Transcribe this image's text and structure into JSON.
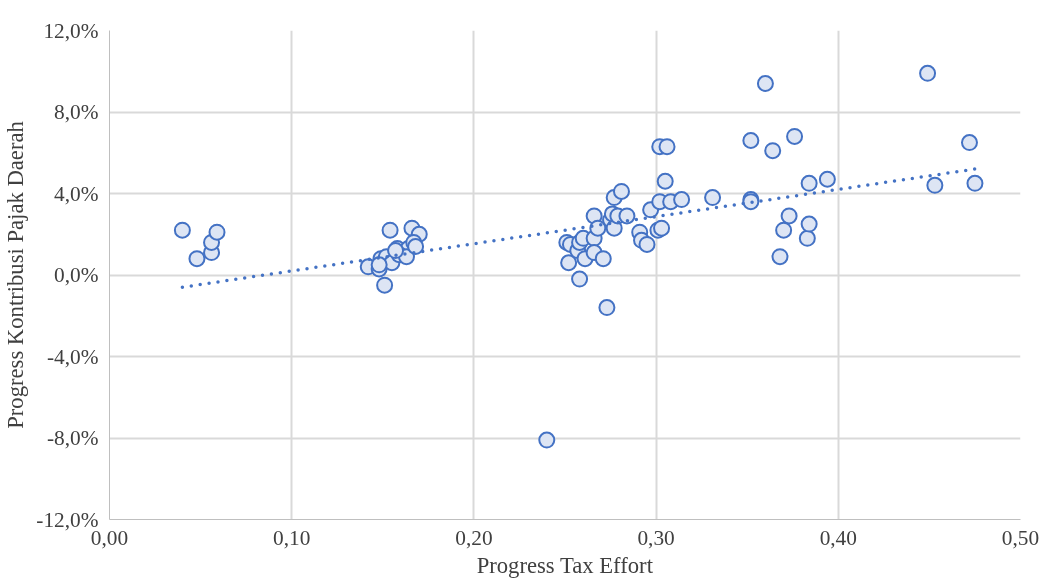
{
  "chart_data": {
    "type": "scatter",
    "xlabel": "Progress Tax Effort",
    "ylabel": "Progress Kontribusi Pajak Daerah",
    "xlim": [
      0,
      0.5
    ],
    "ylim": [
      -12,
      12
    ],
    "xticks": [
      {
        "value": 0,
        "label": "0,00"
      },
      {
        "value": 0.1,
        "label": "0,10"
      },
      {
        "value": 0.2,
        "label": "0,20"
      },
      {
        "value": 0.3,
        "label": "0,30"
      },
      {
        "value": 0.4,
        "label": "0,40"
      },
      {
        "value": 0.5,
        "label": "0,50"
      }
    ],
    "yticks": [
      {
        "value": -12,
        "label": "-12,0%"
      },
      {
        "value": -8,
        "label": "-8,0%"
      },
      {
        "value": -4,
        "label": "-4,0%"
      },
      {
        "value": 0,
        "label": "0,0%"
      },
      {
        "value": 4,
        "label": "4,0%"
      },
      {
        "value": 8,
        "label": "8,0%"
      },
      {
        "value": 12,
        "label": "12,0%"
      }
    ],
    "grid": true,
    "series": [
      {
        "marker": "circle",
        "color": "#4472c4",
        "x": [
          0.04,
          0.048,
          0.056,
          0.056,
          0.059,
          0.154,
          0.166,
          0.17,
          0.151,
          0.142,
          0.148,
          0.149,
          0.152,
          0.155,
          0.158,
          0.164,
          0.167,
          0.159,
          0.163,
          0.168,
          0.148,
          0.157,
          0.251,
          0.253,
          0.252,
          0.257,
          0.258,
          0.26,
          0.261,
          0.258,
          0.266,
          0.266,
          0.266,
          0.268,
          0.271,
          0.273,
          0.275,
          0.276,
          0.277,
          0.279,
          0.277,
          0.281,
          0.284,
          0.291,
          0.292,
          0.295,
          0.297,
          0.301,
          0.303,
          0.302,
          0.302,
          0.306,
          0.305,
          0.308,
          0.314,
          0.331,
          0.352,
          0.352,
          0.352,
          0.36,
          0.364,
          0.376,
          0.373,
          0.37,
          0.368,
          0.383,
          0.384,
          0.384,
          0.394,
          0.449,
          0.472,
          0.453,
          0.475,
          0.24
        ],
        "values": [
          2.2,
          0.8,
          1.1,
          1.6,
          2.1,
          2.2,
          2.3,
          2.0,
          -0.5,
          0.4,
          0.3,
          0.8,
          0.9,
          0.6,
          1.3,
          1.3,
          1.6,
          1.0,
          0.9,
          1.4,
          0.5,
          1.2,
          1.6,
          1.5,
          0.6,
          1.2,
          1.6,
          1.8,
          0.8,
          -0.2,
          2.9,
          1.8,
          1.1,
          2.3,
          0.8,
          -1.6,
          2.7,
          3.0,
          2.3,
          2.9,
          3.8,
          4.1,
          2.9,
          2.1,
          1.7,
          1.5,
          3.2,
          2.2,
          2.3,
          3.6,
          6.3,
          6.3,
          4.6,
          3.6,
          3.7,
          3.8,
          6.6,
          3.7,
          3.6,
          9.4,
          6.1,
          6.8,
          2.9,
          2.2,
          0.9,
          1.8,
          2.5,
          4.5,
          4.7,
          9.9,
          6.5,
          4.4,
          4.5,
          -8.1
        ]
      },
      {
        "type": "line",
        "color": "#4472c4",
        "line_style": "dotted",
        "x": [
          0.04,
          0.475
        ],
        "values": [
          -0.6,
          5.2
        ]
      }
    ]
  }
}
